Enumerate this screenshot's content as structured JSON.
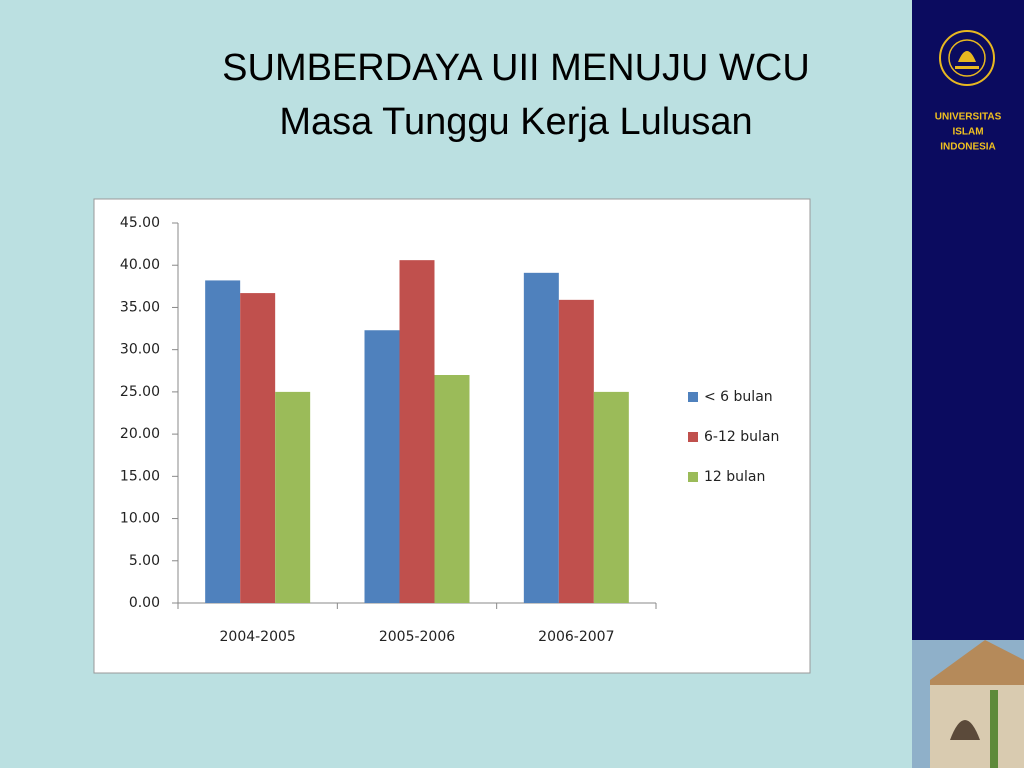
{
  "chart_data": {
    "type": "bar",
    "title": "SUMBERDAYA UII MENUJU WCU",
    "subtitle": "Masa Tunggu Kerja Lulusan",
    "categories": [
      "2004-2005",
      "2005-2006",
      "2006-2007"
    ],
    "series": [
      {
        "name": "< 6 bulan",
        "color": "#4f81bd",
        "values": [
          38.2,
          32.3,
          39.1
        ]
      },
      {
        "name": "6-12 bulan",
        "color": "#c0504d",
        "values": [
          36.7,
          40.6,
          35.9
        ]
      },
      {
        "name": "12 bulan",
        "color": "#9bbb59",
        "values": [
          25.0,
          27.0,
          25.0
        ]
      }
    ],
    "ylim": [
      0,
      45
    ],
    "yticks": [
      {
        "value": 0,
        "label": "0.00"
      },
      {
        "value": 5,
        "label": "5.00"
      },
      {
        "value": 10,
        "label": "10.00"
      },
      {
        "value": 15,
        "label": "15.00"
      },
      {
        "value": 20,
        "label": "20.00"
      },
      {
        "value": 25,
        "label": "25.00"
      },
      {
        "value": 30,
        "label": "30.00"
      },
      {
        "value": 35,
        "label": "35.00"
      },
      {
        "value": 40,
        "label": "40.00"
      },
      {
        "value": 45,
        "label": "45.00"
      }
    ],
    "grid": false,
    "legend": "right"
  },
  "sidebar": {
    "lines": [
      "UNIVERSITAS",
      "ISLAM",
      "INDONESIA"
    ]
  }
}
